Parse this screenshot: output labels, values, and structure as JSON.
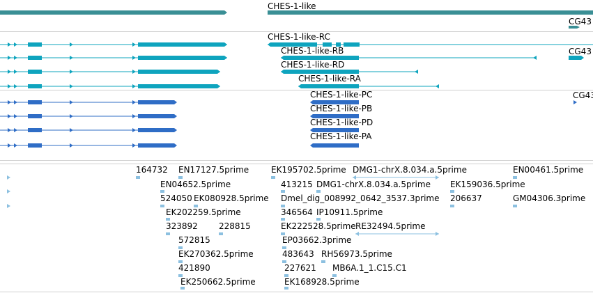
{
  "colors": {
    "gene": "#3a8f95",
    "transcript_rna": "#0ea4be",
    "transcript_protein": "#2f6dc6",
    "feature_5prime": "#8cc0e0",
    "divider": "#cfcfcf",
    "text": "#000000"
  },
  "gene_track": {
    "genes": [
      {
        "name": "CHES-1-like"
      },
      {
        "name": "CG43"
      }
    ]
  },
  "rna_track": {
    "transcripts": [
      {
        "name": "CHES-1-like-RC"
      },
      {
        "name": "CHES-1-like-RB"
      },
      {
        "name": "CHES-1-like-RD"
      },
      {
        "name": "CHES-1-like-RA"
      },
      {
        "name": "CG43"
      }
    ]
  },
  "protein_track": {
    "proteins": [
      {
        "name": "CHES-1-like-PC"
      },
      {
        "name": "CHES-1-like-PB"
      },
      {
        "name": "CHES-1-like-PD"
      },
      {
        "name": "CHES-1-like-PA"
      },
      {
        "name": "CG43"
      }
    ]
  },
  "feature_track": {
    "features": [
      {
        "name": "164732"
      },
      {
        "name": "EN17127.5prime"
      },
      {
        "name": "EK195702.5prime"
      },
      {
        "name": "DMG1-chrX.8.034.a.5prime"
      },
      {
        "name": "EN00461.5prime"
      },
      {
        "name": "EN04652.5prime"
      },
      {
        "name": "413215"
      },
      {
        "name": "DMG1-chrX.8.034.a.5prime"
      },
      {
        "name": "EK159036.5prime"
      },
      {
        "name": "524050"
      },
      {
        "name": "EK080928.5prime"
      },
      {
        "name": "Dmel_dig_008992_0642_3537.3prime"
      },
      {
        "name": "206637"
      },
      {
        "name": "GM04306.3prime"
      },
      {
        "name": "EK202259.5prime"
      },
      {
        "name": "346564"
      },
      {
        "name": "IP10911.5prime"
      },
      {
        "name": "323892"
      },
      {
        "name": "228815"
      },
      {
        "name": "EK222528.5prime"
      },
      {
        "name": "RE32494.5prime"
      },
      {
        "name": "572815"
      },
      {
        "name": "EP03662.3prime"
      },
      {
        "name": "EK270362.5prime"
      },
      {
        "name": "483643"
      },
      {
        "name": "RH56973.5prime"
      },
      {
        "name": "421890"
      },
      {
        "name": "227621"
      },
      {
        "name": "MB6A.1_1.C15.C1"
      },
      {
        "name": "EK250662.5prime"
      },
      {
        "name": "EK168928.5prime"
      }
    ]
  }
}
